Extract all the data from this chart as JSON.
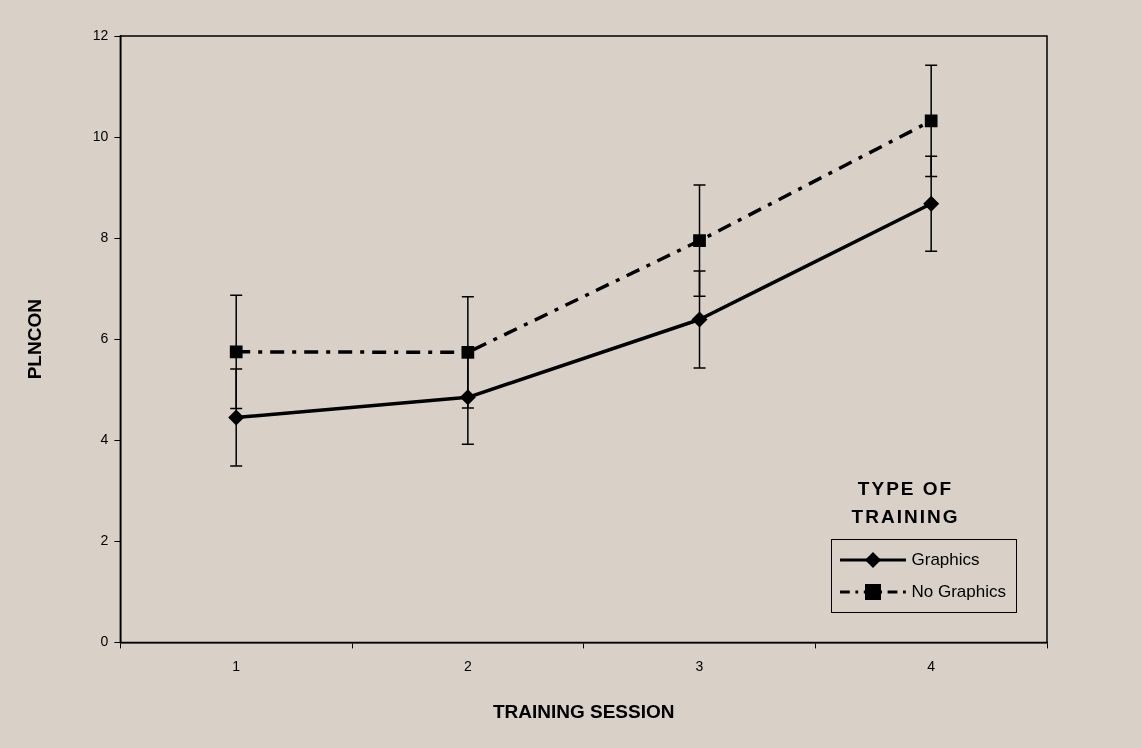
{
  "chart_data": {
    "type": "line",
    "xlabel": "TRAINING SESSION",
    "ylabel": "PLNCON",
    "legend_title": "TYPE OF TRAINING",
    "categories": [
      "1",
      "2",
      "3",
      "4"
    ],
    "series": [
      {
        "name": "Graphics",
        "color": "#000000",
        "marker": "diamond",
        "line_style": "solid",
        "values": [
          4.45,
          4.85,
          6.39,
          8.68
        ],
        "errors": [
          0.96,
          0.93,
          0.96,
          0.94
        ]
      },
      {
        "name": "No Graphics",
        "color": "#000000",
        "marker": "square",
        "line_style": "dashed",
        "values": [
          5.75,
          5.74,
          7.95,
          10.32
        ],
        "errors": [
          1.12,
          1.1,
          1.1,
          1.1
        ]
      }
    ],
    "ylim": [
      0,
      12
    ],
    "yticks": [
      0,
      2,
      4,
      6,
      8,
      10,
      12
    ],
    "grid": false,
    "legend": "bottom right"
  }
}
